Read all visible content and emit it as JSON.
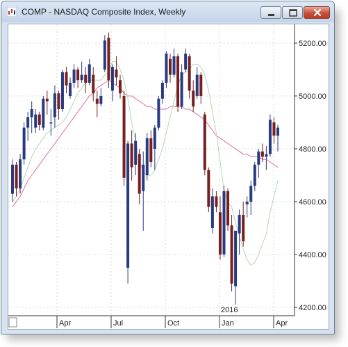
{
  "window": {
    "title": "COMP - NASDAQ Composite Index, Weekly"
  },
  "colors": {
    "up_candle": "#283b82",
    "down_candle": "#7a1f1f",
    "sma_long": "#e0709a",
    "sma_short": "#b5d6b5",
    "grid": "#d8d8d8"
  },
  "chart_data": {
    "type": "candlestick",
    "title": "COMP - NASDAQ Composite Index, Weekly",
    "period": "Weekly",
    "y_ticks": [
      "4200.00",
      "4400.00",
      "4600.00",
      "4800.00",
      "5000.00",
      "5200.00"
    ],
    "x_ticks": [
      "Apr",
      "Jul",
      "Oct",
      "Jan",
      "Apr"
    ],
    "year_label": "2016",
    "ylim": [
      4180,
      5280
    ],
    "y_axis_position": "right",
    "grid": true,
    "series": [
      {
        "name": "price",
        "values": [
          {
            "o": 4630,
            "h": 4760,
            "l": 4600,
            "c": 4740
          },
          {
            "o": 4740,
            "h": 4750,
            "l": 4620,
            "c": 4650
          },
          {
            "o": 4650,
            "h": 4780,
            "l": 4630,
            "c": 4760
          },
          {
            "o": 4760,
            "h": 4900,
            "l": 4740,
            "c": 4880
          },
          {
            "o": 4880,
            "h": 4940,
            "l": 4830,
            "c": 4920
          },
          {
            "o": 4920,
            "h": 4980,
            "l": 4860,
            "c": 4950
          },
          {
            "o": 4880,
            "h": 4950,
            "l": 4860,
            "c": 4930
          },
          {
            "o": 4930,
            "h": 4940,
            "l": 4870,
            "c": 4890
          },
          {
            "o": 4880,
            "h": 5000,
            "l": 4870,
            "c": 4990
          },
          {
            "o": 4990,
            "h": 5020,
            "l": 4930,
            "c": 4980
          },
          {
            "o": 4900,
            "h": 4950,
            "l": 4850,
            "c": 4900
          },
          {
            "o": 4920,
            "h": 5040,
            "l": 4880,
            "c": 5010
          },
          {
            "o": 5010,
            "h": 5020,
            "l": 4910,
            "c": 4950
          },
          {
            "o": 4950,
            "h": 5100,
            "l": 4940,
            "c": 5090
          },
          {
            "o": 5090,
            "h": 5110,
            "l": 5010,
            "c": 5040
          },
          {
            "o": 5000,
            "h": 5070,
            "l": 4990,
            "c": 5050
          },
          {
            "o": 5050,
            "h": 5120,
            "l": 5030,
            "c": 5100
          },
          {
            "o": 5100,
            "h": 5110,
            "l": 5030,
            "c": 5060
          },
          {
            "o": 5060,
            "h": 5130,
            "l": 5050,
            "c": 5080
          },
          {
            "o": 5080,
            "h": 5110,
            "l": 5010,
            "c": 5050
          },
          {
            "o": 5050,
            "h": 5140,
            "l": 5040,
            "c": 5120
          },
          {
            "o": 5080,
            "h": 5110,
            "l": 4980,
            "c": 5010
          },
          {
            "o": 4990,
            "h": 5020,
            "l": 4920,
            "c": 4970
          },
          {
            "o": 4970,
            "h": 5030,
            "l": 4960,
            "c": 5000
          },
          {
            "o": 5100,
            "h": 5230,
            "l": 5090,
            "c": 5210
          },
          {
            "o": 5220,
            "h": 5240,
            "l": 5030,
            "c": 5060
          },
          {
            "o": 5020,
            "h": 5120,
            "l": 4980,
            "c": 5110
          },
          {
            "o": 5100,
            "h": 5150,
            "l": 5040,
            "c": 5070
          },
          {
            "o": 5060,
            "h": 5080,
            "l": 4990,
            "c": 5010
          },
          {
            "o": 5000,
            "h": 5020,
            "l": 4660,
            "c": 4690
          },
          {
            "o": 4350,
            "h": 4830,
            "l": 4290,
            "c": 4820
          },
          {
            "o": 4820,
            "h": 4870,
            "l": 4680,
            "c": 4730
          },
          {
            "o": 4740,
            "h": 4860,
            "l": 4700,
            "c": 4830
          },
          {
            "o": 4780,
            "h": 4800,
            "l": 4590,
            "c": 4630
          },
          {
            "o": 4640,
            "h": 4790,
            "l": 4490,
            "c": 4740
          },
          {
            "o": 4700,
            "h": 4860,
            "l": 4680,
            "c": 4840
          },
          {
            "o": 4840,
            "h": 4870,
            "l": 4730,
            "c": 4750
          },
          {
            "o": 4800,
            "h": 4890,
            "l": 4720,
            "c": 4880
          },
          {
            "o": 4880,
            "h": 5000,
            "l": 4870,
            "c": 4990
          },
          {
            "o": 4990,
            "h": 5060,
            "l": 4970,
            "c": 5050
          },
          {
            "o": 5050,
            "h": 5170,
            "l": 5030,
            "c": 5160
          },
          {
            "o": 5140,
            "h": 5160,
            "l": 5050,
            "c": 5080
          },
          {
            "o": 5080,
            "h": 5180,
            "l": 5070,
            "c": 5150
          },
          {
            "o": 5150,
            "h": 5160,
            "l": 4940,
            "c": 4960
          },
          {
            "o": 4960,
            "h": 5120,
            "l": 4950,
            "c": 5090
          },
          {
            "o": 5100,
            "h": 5180,
            "l": 5090,
            "c": 5160
          },
          {
            "o": 5150,
            "h": 5160,
            "l": 4990,
            "c": 5020
          },
          {
            "o": 5020,
            "h": 5060,
            "l": 4940,
            "c": 4960
          },
          {
            "o": 5000,
            "h": 5110,
            "l": 4990,
            "c": 5080
          },
          {
            "o": 5080,
            "h": 5090,
            "l": 4970,
            "c": 5000
          },
          {
            "o": 4930,
            "h": 4940,
            "l": 4700,
            "c": 4720
          },
          {
            "o": 4720,
            "h": 4730,
            "l": 4560,
            "c": 4580
          },
          {
            "o": 4500,
            "h": 4650,
            "l": 4480,
            "c": 4620
          },
          {
            "o": 4620,
            "h": 4640,
            "l": 4560,
            "c": 4580
          },
          {
            "o": 4560,
            "h": 4620,
            "l": 4380,
            "c": 4400
          },
          {
            "o": 4400,
            "h": 4660,
            "l": 4390,
            "c": 4640
          },
          {
            "o": 4640,
            "h": 4650,
            "l": 4490,
            "c": 4510
          },
          {
            "o": 4510,
            "h": 4550,
            "l": 4260,
            "c": 4290
          },
          {
            "o": 4280,
            "h": 4460,
            "l": 4210,
            "c": 4490
          },
          {
            "o": 4480,
            "h": 4570,
            "l": 4400,
            "c": 4550
          },
          {
            "o": 4550,
            "h": 4600,
            "l": 4430,
            "c": 4450
          },
          {
            "o": 4590,
            "h": 4620,
            "l": 4540,
            "c": 4600
          },
          {
            "o": 4600,
            "h": 4680,
            "l": 4550,
            "c": 4660
          },
          {
            "o": 4660,
            "h": 4750,
            "l": 4640,
            "c": 4740
          },
          {
            "o": 4740,
            "h": 4800,
            "l": 4690,
            "c": 4790
          },
          {
            "o": 4790,
            "h": 4820,
            "l": 4750,
            "c": 4770
          },
          {
            "o": 4770,
            "h": 4810,
            "l": 4720,
            "c": 4780
          },
          {
            "o": 4780,
            "h": 4930,
            "l": 4770,
            "c": 4910
          },
          {
            "o": 4900,
            "h": 4920,
            "l": 4820,
            "c": 4850
          },
          {
            "o": 4850,
            "h": 4890,
            "l": 4790,
            "c": 4880
          }
        ]
      },
      {
        "name": "sma_long",
        "values": [
          4580,
          4600,
          4620,
          4650,
          4680,
          4700,
          4720,
          4740,
          4760,
          4780,
          4800,
          4820,
          4840,
          4860,
          4880,
          4900,
          4920,
          4940,
          4960,
          4980,
          5000,
          5010,
          5030,
          5040,
          5050,
          5060,
          5050,
          5040,
          5030,
          5010,
          5000,
          5000,
          4990,
          4980,
          4970,
          4960,
          4960,
          4950,
          4950,
          4950,
          4950,
          4960,
          4960,
          4960,
          4960,
          4950,
          4950,
          4940,
          4930,
          4920,
          4910,
          4890,
          4870,
          4850,
          4840,
          4830,
          4820,
          4810,
          4800,
          4790,
          4780,
          4780,
          4770,
          4770,
          4770,
          4760,
          4760,
          4750,
          4740,
          4730
        ]
      },
      {
        "name": "sma_short",
        "values": [
          4600,
          4620,
          4650,
          4690,
          4730,
          4770,
          4800,
          4820,
          4840,
          4860,
          4870,
          4880,
          4890,
          4900,
          4920,
          4950,
          4980,
          5010,
          5030,
          5050,
          5060,
          5060,
          5060,
          5060,
          5080,
          5090,
          5130,
          5130,
          5100,
          5060,
          4990,
          4900,
          4830,
          4760,
          4710,
          4700,
          4700,
          4720,
          4760,
          4800,
          4860,
          4920,
          4980,
          5040,
          5080,
          5090,
          5100,
          5120,
          5120,
          5110,
          5080,
          5020,
          4940,
          4860,
          4750,
          4640,
          4600,
          4580,
          4520,
          4470,
          4420,
          4380,
          4360,
          4370,
          4400,
          4440,
          4480,
          4560,
          4620,
          4680
        ]
      }
    ]
  }
}
